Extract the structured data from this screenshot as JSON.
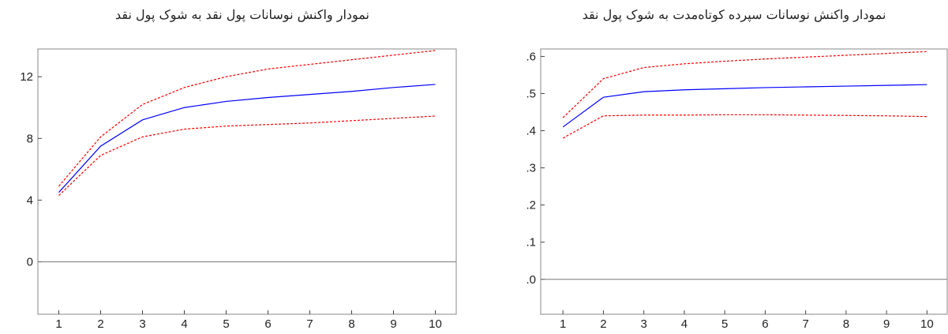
{
  "chart_data": [
    {
      "type": "line",
      "title": "نمودار واکنش نوسانات پول نقد به شوک پول نقد",
      "x": [
        1,
        2,
        3,
        4,
        5,
        6,
        7,
        8,
        9,
        10
      ],
      "xlim": [
        0.5,
        10.5
      ],
      "xticks": [
        1,
        2,
        3,
        4,
        5,
        6,
        7,
        8,
        9,
        10
      ],
      "ylim": [
        -3.4,
        13.8
      ],
      "yticks": [
        0,
        4,
        8,
        12
      ],
      "zero_line": true,
      "series": [
        {
          "color": "#ff0000",
          "dashed": true,
          "values": [
            4.9,
            8.1,
            10.2,
            11.3,
            12.0,
            12.5,
            12.8,
            13.1,
            13.4,
            13.7
          ]
        },
        {
          "color": "#0000ff",
          "dashed": false,
          "values": [
            4.5,
            7.5,
            9.2,
            10.0,
            10.4,
            10.65,
            10.85,
            11.05,
            11.3,
            11.5
          ]
        },
        {
          "color": "#ff0000",
          "dashed": true,
          "values": [
            4.3,
            6.9,
            8.1,
            8.6,
            8.8,
            8.9,
            9.0,
            9.15,
            9.3,
            9.45
          ]
        }
      ]
    },
    {
      "type": "line",
      "title": "نمودار واکنش نوسانات سپرده کوتاه‌مدت به شوک پول نقد",
      "x": [
        1,
        2,
        3,
        4,
        5,
        6,
        7,
        8,
        9,
        10
      ],
      "xlim": [
        0.45,
        10.5
      ],
      "xticks": [
        1,
        2,
        3,
        4,
        5,
        6,
        7,
        8,
        9,
        10
      ],
      "ylim": [
        -0.094,
        0.62
      ],
      "yticks": [
        {
          "value": 0,
          "label": ".0"
        },
        {
          "value": 0.1,
          "label": ".1"
        },
        {
          "value": 0.2,
          "label": ".2"
        },
        {
          "value": 0.3,
          "label": ".3"
        },
        {
          "value": 0.4,
          "label": ".4"
        },
        {
          "value": 0.5,
          "label": ".5"
        },
        {
          "value": 0.6,
          "label": ".6"
        }
      ],
      "zero_line": true,
      "series": [
        {
          "color": "#ff0000",
          "dashed": true,
          "values": [
            0.435,
            0.54,
            0.57,
            0.58,
            0.587,
            0.593,
            0.598,
            0.603,
            0.608,
            0.613
          ]
        },
        {
          "color": "#0000ff",
          "dashed": false,
          "values": [
            0.41,
            0.49,
            0.505,
            0.51,
            0.513,
            0.516,
            0.518,
            0.52,
            0.522,
            0.524
          ]
        },
        {
          "color": "#ff0000",
          "dashed": true,
          "values": [
            0.38,
            0.44,
            0.442,
            0.442,
            0.443,
            0.443,
            0.442,
            0.441,
            0.44,
            0.438
          ]
        }
      ]
    }
  ]
}
